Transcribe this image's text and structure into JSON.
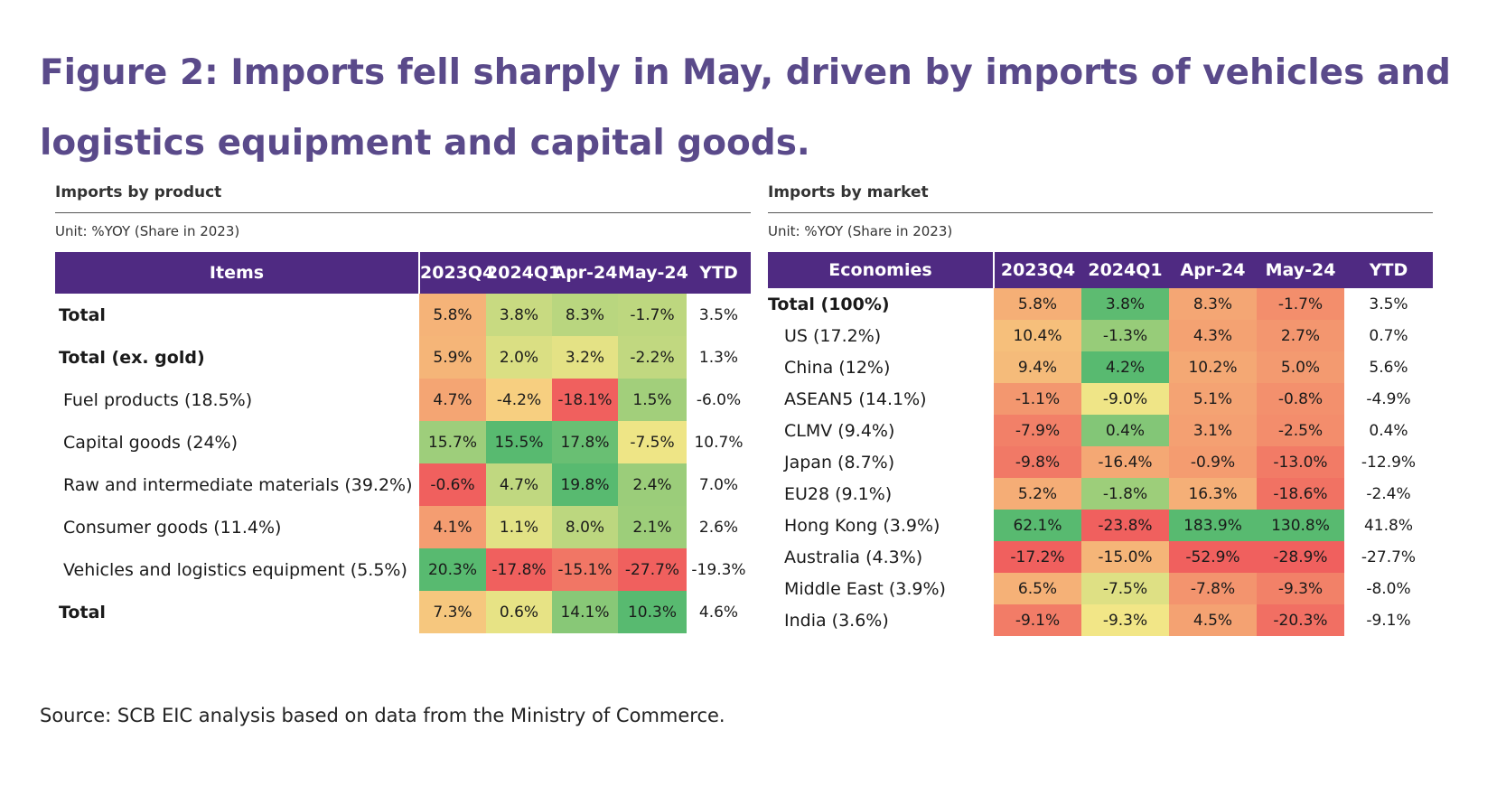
{
  "title": "Figure 2: Imports fell sharply in May, driven by imports of vehicles and logistics equipment and capital goods.",
  "source": "Source: SCB EIC analysis based on data from the Ministry of Commerce.",
  "colors": {
    "header_bg": "#4f2a82",
    "title_color": "#5a4a8a",
    "scale_low": "#f0605e",
    "scale_mid": "#f8e888",
    "scale_high": "#58ba70"
  },
  "chart_data": [
    {
      "type": "table",
      "title": "Imports by product",
      "unit": "Unit: %YOY (Share in 2023)",
      "columns": [
        "Items",
        "2023Q4",
        "2024Q1",
        "Apr-24",
        "May-24",
        "YTD"
      ],
      "rows": [
        {
          "label": "Total",
          "bold": true,
          "values": [
            "5.8%",
            "3.8%",
            "8.3%",
            "-1.7%",
            "3.5%"
          ]
        },
        {
          "label": "Total (ex. gold)",
          "bold": true,
          "values": [
            "5.9%",
            "2.0%",
            "3.2%",
            "-2.2%",
            "1.3%"
          ]
        },
        {
          "label": "Fuel products (18.5%)",
          "bold": false,
          "values": [
            "4.7%",
            "-4.2%",
            "-18.1%",
            "1.5%",
            "-6.0%"
          ]
        },
        {
          "label": "Capital goods (24%)",
          "bold": false,
          "values": [
            "15.7%",
            "15.5%",
            "17.8%",
            "-7.5%",
            "10.7%"
          ]
        },
        {
          "label": "Raw and intermediate materials (39.2%)",
          "bold": false,
          "values": [
            "-0.6%",
            "4.7%",
            "19.8%",
            "2.4%",
            "7.0%"
          ]
        },
        {
          "label": "Consumer goods (11.4%)",
          "bold": false,
          "values": [
            "4.1%",
            "1.1%",
            "8.0%",
            "2.1%",
            "2.6%"
          ]
        },
        {
          "label": "Vehicles and logistics equipment (5.5%)",
          "bold": false,
          "values": [
            "20.3%",
            "-17.8%",
            "-15.1%",
            "-27.7%",
            "-19.3%"
          ]
        },
        {
          "label": "Total",
          "bold": true,
          "values": [
            "7.3%",
            "0.6%",
            "14.1%",
            "10.3%",
            "4.6%"
          ]
        }
      ]
    },
    {
      "type": "table",
      "title": "Imports by market",
      "unit": "Unit: %YOY (Share in 2023)",
      "columns": [
        "Economies",
        "2023Q4",
        "2024Q1",
        "Apr-24",
        "May-24",
        "YTD"
      ],
      "rows": [
        {
          "label": "Total (100%)",
          "bold": true,
          "values": [
            "5.8%",
            "3.8%",
            "8.3%",
            "-1.7%",
            "3.5%"
          ]
        },
        {
          "label": "US (17.2%)",
          "bold": false,
          "values": [
            "10.4%",
            "-1.3%",
            "4.3%",
            "2.7%",
            "0.7%"
          ]
        },
        {
          "label": "China (12%)",
          "bold": false,
          "values": [
            "9.4%",
            "4.2%",
            "10.2%",
            "5.0%",
            "5.6%"
          ]
        },
        {
          "label": "ASEAN5 (14.1%)",
          "bold": false,
          "values": [
            "-1.1%",
            "-9.0%",
            "5.1%",
            "-0.8%",
            "-4.9%"
          ]
        },
        {
          "label": "CLMV (9.4%)",
          "bold": false,
          "values": [
            "-7.9%",
            "0.4%",
            "3.1%",
            "-2.5%",
            "0.4%"
          ]
        },
        {
          "label": "Japan (8.7%)",
          "bold": false,
          "values": [
            "-9.8%",
            "-16.4%",
            "-0.9%",
            "-13.0%",
            "-12.9%"
          ]
        },
        {
          "label": "EU28 (9.1%)",
          "bold": false,
          "values": [
            "5.2%",
            "-1.8%",
            "16.3%",
            "-18.6%",
            "-2.4%"
          ]
        },
        {
          "label": "Hong Kong (3.9%)",
          "bold": false,
          "values": [
            "62.1%",
            "-23.8%",
            "183.9%",
            "130.8%",
            "41.8%"
          ]
        },
        {
          "label": "Australia (4.3%)",
          "bold": false,
          "values": [
            "-17.2%",
            "-15.0%",
            "-52.9%",
            "-28.9%",
            "-27.7%"
          ]
        },
        {
          "label": "Middle East (3.9%)",
          "bold": false,
          "values": [
            "6.5%",
            "-7.5%",
            "-7.8%",
            "-9.3%",
            "-8.0%"
          ]
        },
        {
          "label": "India (3.6%)",
          "bold": false,
          "values": [
            "-9.1%",
            "-9.3%",
            "4.5%",
            "-20.3%",
            "-9.1%"
          ]
        }
      ]
    }
  ]
}
